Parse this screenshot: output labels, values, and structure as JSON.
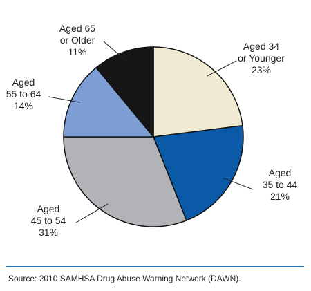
{
  "chart_data": {
    "type": "pie",
    "start_angle_deg": 0,
    "direction": "clockwise",
    "slices": [
      {
        "label_lines": [
          "Aged 34",
          "or Younger",
          "23%"
        ],
        "value": 23,
        "color": "#f0ead2"
      },
      {
        "label_lines": [
          "Aged",
          "35 to 44",
          "21%"
        ],
        "value": 21,
        "color": "#0b5aa8"
      },
      {
        "label_lines": [
          "Aged",
          "45 to 54",
          "31%"
        ],
        "value": 31,
        "color": "#b2b3b7"
      },
      {
        "label_lines": [
          "Aged",
          "55 to 64",
          "14%"
        ],
        "value": 14,
        "color": "#7e9fd6"
      },
      {
        "label_lines": [
          "Aged 65",
          "or Older",
          "11%"
        ],
        "value": 11,
        "color": "#151515"
      }
    ]
  },
  "divider_color": "#1f6fb6",
  "source": "Source: 2010 SAMHSA Drug Abuse Warning Network (DAWN)."
}
